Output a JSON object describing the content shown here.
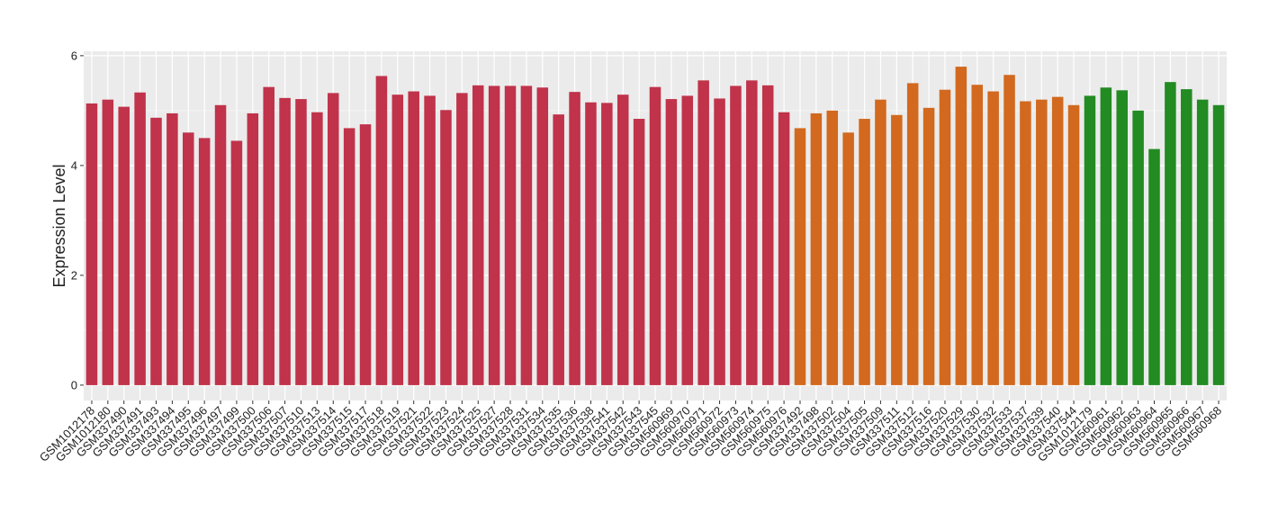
{
  "chart_data": {
    "type": "bar",
    "y_label": "Expression Level",
    "categories": [
      "GSM1012178",
      "GSM1012180",
      "GSM337490",
      "GSM337491",
      "GSM337493",
      "GSM337494",
      "GSM337495",
      "GSM337496",
      "GSM337497",
      "GSM337499",
      "GSM337500",
      "GSM337506",
      "GSM337507",
      "GSM337510",
      "GSM337513",
      "GSM337514",
      "GSM337515",
      "GSM337517",
      "GSM337518",
      "GSM337519",
      "GSM337521",
      "GSM337522",
      "GSM337523",
      "GSM337524",
      "GSM337525",
      "GSM337527",
      "GSM337528",
      "GSM337531",
      "GSM337534",
      "GSM337535",
      "GSM337536",
      "GSM337538",
      "GSM337541",
      "GSM337542",
      "GSM337543",
      "GSM337545",
      "GSM560969",
      "GSM560970",
      "GSM560971",
      "GSM560972",
      "GSM560973",
      "GSM560974",
      "GSM560975",
      "GSM560976",
      "GSM337492",
      "GSM337498",
      "GSM337502",
      "GSM337504",
      "GSM337505",
      "GSM337509",
      "GSM337511",
      "GSM337512",
      "GSM337516",
      "GSM337520",
      "GSM337529",
      "GSM337530",
      "GSM337532",
      "GSM337533",
      "GSM337537",
      "GSM337539",
      "GSM337540",
      "GSM337544",
      "GSM1012179",
      "GSM560961",
      "GSM560962",
      "GSM560963",
      "GSM560964",
      "GSM560965",
      "GSM560966",
      "GSM560967",
      "GSM560968"
    ],
    "values": [
      5.13,
      5.2,
      5.07,
      5.33,
      4.87,
      4.95,
      4.6,
      4.5,
      5.1,
      4.45,
      4.95,
      5.43,
      5.23,
      5.21,
      4.97,
      5.32,
      4.68,
      4.75,
      5.63,
      5.29,
      5.35,
      5.27,
      5.01,
      5.32,
      5.46,
      5.45,
      5.45,
      5.45,
      5.42,
      4.93,
      5.34,
      5.15,
      5.14,
      5.29,
      4.85,
      5.43,
      5.21,
      5.27,
      5.55,
      5.22,
      5.45,
      5.55,
      5.46,
      4.97,
      4.68,
      4.95,
      5.0,
      4.6,
      4.85,
      5.2,
      4.92,
      5.5,
      5.05,
      5.38,
      5.8,
      5.47,
      5.35,
      5.65,
      5.17,
      5.2,
      5.25,
      5.1,
      5.27,
      5.42,
      5.37,
      5.0,
      4.3,
      5.52,
      5.39,
      5.2,
      5.1
    ],
    "colors": [
      "#c0334a",
      "#c0334a",
      "#c0334a",
      "#c0334a",
      "#c0334a",
      "#c0334a",
      "#c0334a",
      "#c0334a",
      "#c0334a",
      "#c0334a",
      "#c0334a",
      "#c0334a",
      "#c0334a",
      "#c0334a",
      "#c0334a",
      "#c0334a",
      "#c0334a",
      "#c0334a",
      "#c0334a",
      "#c0334a",
      "#c0334a",
      "#c0334a",
      "#c0334a",
      "#c0334a",
      "#c0334a",
      "#c0334a",
      "#c0334a",
      "#c0334a",
      "#c0334a",
      "#c0334a",
      "#c0334a",
      "#c0334a",
      "#c0334a",
      "#c0334a",
      "#c0334a",
      "#c0334a",
      "#c0334a",
      "#c0334a",
      "#c0334a",
      "#c0334a",
      "#c0334a",
      "#c0334a",
      "#c0334a",
      "#c0334a",
      "#d2691e",
      "#d2691e",
      "#d2691e",
      "#d2691e",
      "#d2691e",
      "#d2691e",
      "#d2691e",
      "#d2691e",
      "#d2691e",
      "#d2691e",
      "#d2691e",
      "#d2691e",
      "#d2691e",
      "#d2691e",
      "#d2691e",
      "#d2691e",
      "#d2691e",
      "#d2691e",
      "#228b22",
      "#228b22",
      "#228b22",
      "#228b22",
      "#228b22",
      "#228b22",
      "#228b22",
      "#228b22",
      "#228b22"
    ],
    "ylim": [
      -0.28,
      6.08
    ],
    "yticks": [
      0,
      2,
      4,
      6
    ],
    "minor_yticks": [
      1,
      3,
      5
    ],
    "grid": true
  }
}
